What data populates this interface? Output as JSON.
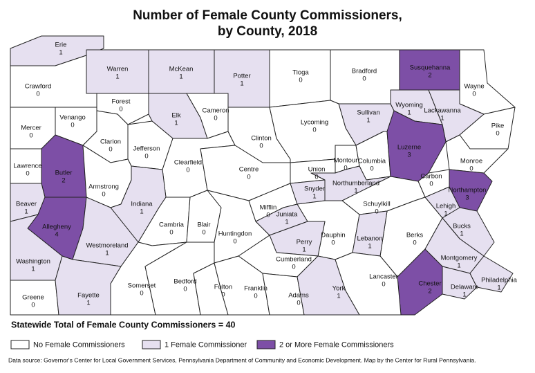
{
  "title_lines": [
    "Number of Female County Commissioners,",
    "by County, 2018"
  ],
  "counties": [
    {
      "name": "Erie",
      "value": 1
    },
    {
      "name": "Crawford",
      "value": 0
    },
    {
      "name": "Warren",
      "value": 1
    },
    {
      "name": "McKean",
      "value": 1
    },
    {
      "name": "Potter",
      "value": 1
    },
    {
      "name": "Tioga",
      "value": 0
    },
    {
      "name": "Bradford",
      "value": 0
    },
    {
      "name": "Susquehanna",
      "value": 2
    },
    {
      "name": "Wayne",
      "value": 0
    },
    {
      "name": "Forest",
      "value": 0
    },
    {
      "name": "Elk",
      "value": 1
    },
    {
      "name": "Cameron",
      "value": 0
    },
    {
      "name": "Sullivan",
      "value": 1
    },
    {
      "name": "Wyoming",
      "value": 1
    },
    {
      "name": "Lackawanna",
      "value": 1
    },
    {
      "name": "Pike",
      "value": 0
    },
    {
      "name": "Mercer",
      "value": 0
    },
    {
      "name": "Venango",
      "value": 0
    },
    {
      "name": "Clarion",
      "value": 0
    },
    {
      "name": "Jefferson",
      "value": 0
    },
    {
      "name": "Clearfield",
      "value": 0
    },
    {
      "name": "Clinton",
      "value": 0
    },
    {
      "name": "Lycoming",
      "value": 0
    },
    {
      "name": "Centre",
      "value": 0
    },
    {
      "name": "Union",
      "value": 0
    },
    {
      "name": "Montour",
      "value": 0
    },
    {
      "name": "Columbia",
      "value": 0
    },
    {
      "name": "Luzerne",
      "value": 3
    },
    {
      "name": "Monroe",
      "value": 0
    },
    {
      "name": "Carbon",
      "value": 0
    },
    {
      "name": "Northampton",
      "value": 3
    },
    {
      "name": "Lawrence",
      "value": 0
    },
    {
      "name": "Butler",
      "value": 2
    },
    {
      "name": "Armstrong",
      "value": 0
    },
    {
      "name": "Beaver",
      "value": 1
    },
    {
      "name": "Indiana",
      "value": 1
    },
    {
      "name": "Allegheny",
      "value": 4
    },
    {
      "name": "Cambria",
      "value": 0
    },
    {
      "name": "Blair",
      "value": 0
    },
    {
      "name": "Huntingdon",
      "value": 0
    },
    {
      "name": "Mifflin",
      "value": 0
    },
    {
      "name": "Juniata",
      "value": 1
    },
    {
      "name": "Snyder",
      "value": 1
    },
    {
      "name": "Northumberland",
      "value": 1
    },
    {
      "name": "Schuylkill",
      "value": 0
    },
    {
      "name": "Lehigh",
      "value": 1
    },
    {
      "name": "Bucks",
      "value": 1
    },
    {
      "name": "Berks",
      "value": 0
    },
    {
      "name": "Dauphin",
      "value": 0
    },
    {
      "name": "Perry",
      "value": 1
    },
    {
      "name": "Lebanon",
      "value": 1
    },
    {
      "name": "Cumberland",
      "value": 0
    },
    {
      "name": "Washington",
      "value": 1
    },
    {
      "name": "Westmoreland",
      "value": 1
    },
    {
      "name": "Montgomery",
      "value": 1
    },
    {
      "name": "Chester",
      "value": 2
    },
    {
      "name": "Delaware",
      "value": 1
    },
    {
      "name": "Philadelphia",
      "value": 1
    },
    {
      "name": "Greene",
      "value": 0
    },
    {
      "name": "Fayette",
      "value": 1
    },
    {
      "name": "Somerset",
      "value": 0
    },
    {
      "name": "Bedford",
      "value": 0
    },
    {
      "name": "Fulton",
      "value": 0
    },
    {
      "name": "Franklin",
      "value": 0
    },
    {
      "name": "Adams",
      "value": 0
    },
    {
      "name": "York",
      "value": 1
    },
    {
      "name": "Lancaster",
      "value": 0
    }
  ],
  "total": "Statewide Total of Female County Commissioners = 40",
  "legend": [
    {
      "label": "No Female Commissioners",
      "color": "#ffffff"
    },
    {
      "label": "1 Female Commissioner",
      "color": "#e6e0f0"
    },
    {
      "label": "2 or More Female Commissioners",
      "color": "#7d4fa6"
    }
  ],
  "source": "Data source: Governor's Center for Local Government Services, Pennsylvania Department of Community and Economic Development. Map by the Center for Rural Pennsylvania."
}
